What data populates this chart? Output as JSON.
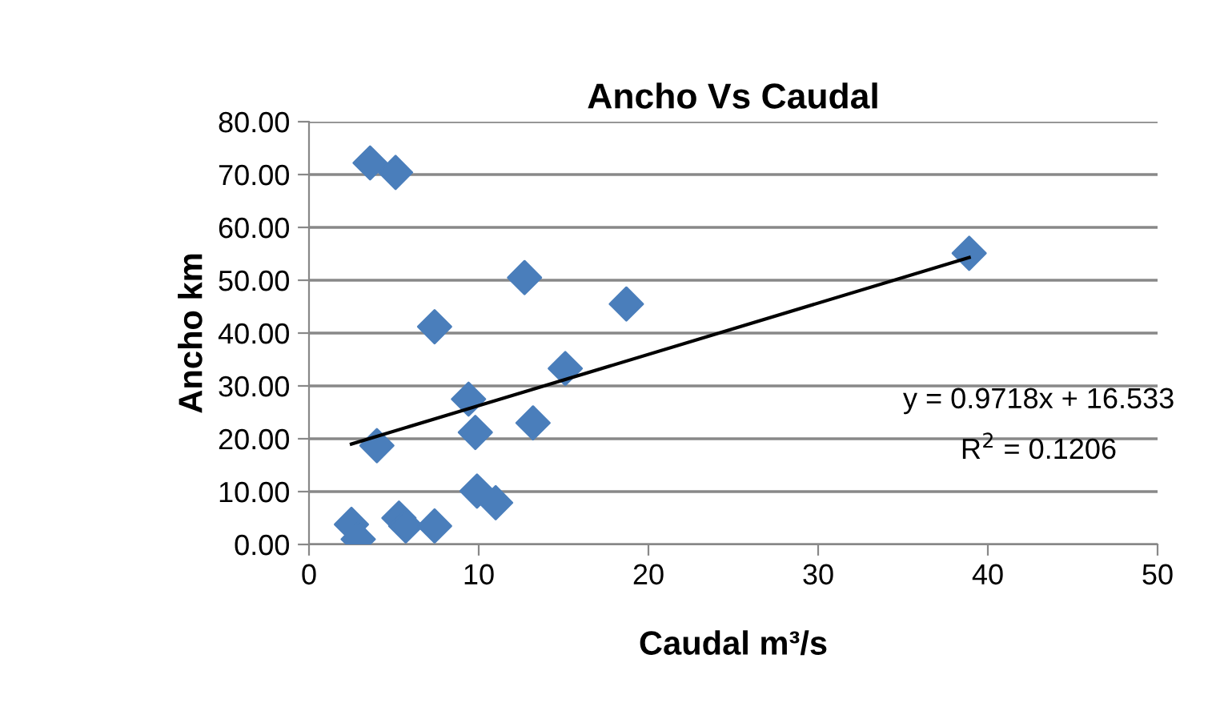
{
  "chart_data": {
    "type": "scatter",
    "title": "Ancho Vs Caudal",
    "xlabel": "Caudal m³/s",
    "ylabel": "Ancho km",
    "xlim": [
      0,
      50
    ],
    "xticks": [
      0,
      10,
      20,
      30,
      40,
      50
    ],
    "ylim": [
      0,
      80
    ],
    "yticks": [
      {
        "value": 0,
        "label": "0.00"
      },
      {
        "value": 10,
        "label": "10.00"
      },
      {
        "value": 20,
        "label": "20.00"
      },
      {
        "value": 30,
        "label": "30.00"
      },
      {
        "value": 40,
        "label": "40.00"
      },
      {
        "value": 50,
        "label": "50.00"
      },
      {
        "value": 60,
        "label": "60.00"
      },
      {
        "value": 70,
        "label": "70.00"
      },
      {
        "value": 80,
        "label": "80.00"
      }
    ],
    "grid": "y",
    "legend": false,
    "marker": "diamond",
    "series": [
      {
        "color": "#4a7ebb",
        "x": [
          3.6,
          5.1,
          12.7,
          18.7,
          7.4,
          15.1,
          9.4,
          9.8,
          13.2,
          4.0,
          9.9,
          11.0,
          2.5,
          2.9,
          5.3,
          5.7,
          7.4,
          38.9
        ],
        "values": [
          72.2,
          70.4,
          50.5,
          45.5,
          41.2,
          33.3,
          27.5,
          21.2,
          23.0,
          18.7,
          10.1,
          7.9,
          3.8,
          1.0,
          5.0,
          3.5,
          3.5,
          55.1
        ]
      },
      {
        "type": "line",
        "color": "#000000",
        "line_style": "solid",
        "marker": "none",
        "x": [
          2.5,
          38.9
        ],
        "values": [
          19.0,
          54.3
        ]
      }
    ],
    "annotations": [
      "y = 0.9718x + 16.533",
      "R$^{2}$ = 0.1206"
    ]
  }
}
